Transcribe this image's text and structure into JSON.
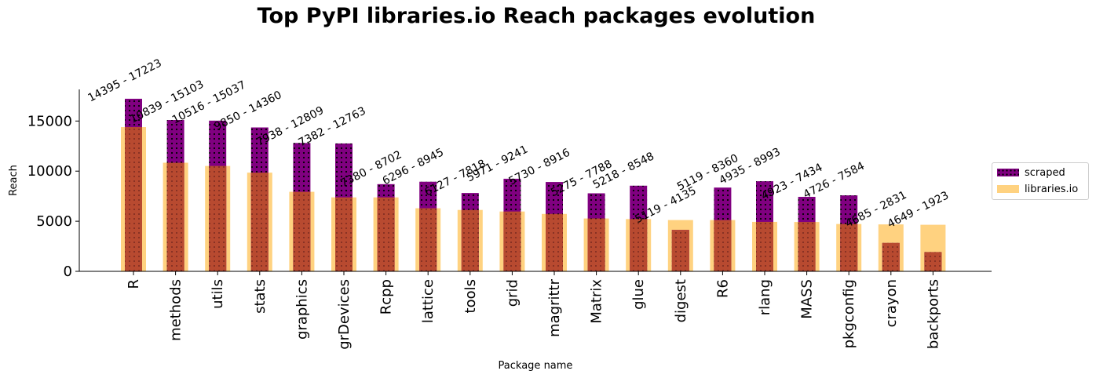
{
  "chart_data": {
    "type": "bar",
    "title": "Top PyPI libraries.io Reach packages evolution",
    "xlabel": "Package name",
    "ylabel": "Reach",
    "ylim": [
      0,
      18000
    ],
    "yticks": [
      0,
      5000,
      10000,
      15000
    ],
    "categories": [
      "R",
      "methods",
      "utils",
      "stats",
      "graphics",
      "grDevices",
      "Rcpp",
      "lattice",
      "tools",
      "grid",
      "magrittr",
      "Matrix",
      "glue",
      "digest",
      "R6",
      "rlang",
      "MASS",
      "pkgconfig",
      "crayon",
      "backports"
    ],
    "series": [
      {
        "name": "scraped",
        "color": "#800080",
        "hatch": "dots",
        "values": [
          17223,
          15103,
          15037,
          14360,
          12809,
          12763,
          8702,
          8945,
          7818,
          9241,
          8916,
          7788,
          8548,
          4135,
          8360,
          8993,
          7434,
          7584,
          2831,
          1923
        ]
      },
      {
        "name": "libraries.io",
        "color": "#ffd280",
        "values": [
          14395,
          10839,
          10516,
          9850,
          7938,
          7382,
          7380,
          6296,
          6127,
          5971,
          5730,
          5275,
          5218,
          5119,
          5119,
          4935,
          4923,
          4726,
          4685,
          4649
        ]
      }
    ],
    "annotations": [
      "14395 - 17223",
      "10839 - 15103",
      "10516 - 15037",
      "9850 - 14360",
      "7938 - 12809",
      "7382 - 12763",
      "7380 - 8702",
      "6296 - 8945",
      "6127 - 7818",
      "5971 - 9241",
      "5730 - 8916",
      "5275 - 7788",
      "5218 - 8548",
      "5119 - 4135",
      "5119 - 8360",
      "4935 - 8993",
      "4923 - 7434",
      "4726 - 7584",
      "4685 - 2831",
      "4649 - 1923"
    ],
    "overlap_color": "#b84a30",
    "legend_position": "right",
    "grid": false
  }
}
